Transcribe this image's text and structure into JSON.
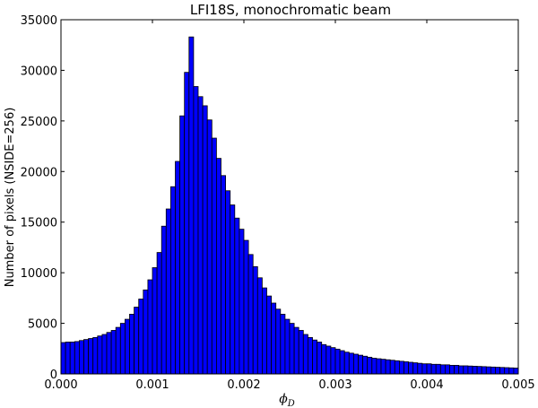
{
  "chart_data": {
    "type": "bar",
    "title": "LFI18S, monochromatic beam",
    "xlabel": "ϕ",
    "xlabel_subscript": "D",
    "ylabel": "Number of pixels (NSIDE=256)",
    "xlim": [
      0.0,
      0.005
    ],
    "ylim": [
      0,
      35000
    ],
    "xticks": [
      0.0,
      0.001,
      0.002,
      0.003,
      0.004,
      0.005
    ],
    "xtick_labels": [
      "0.000",
      "0.001",
      "0.002",
      "0.003",
      "0.004",
      "0.005"
    ],
    "yticks": [
      0,
      5000,
      10000,
      15000,
      20000,
      25000,
      30000,
      35000
    ],
    "ytick_labels": [
      "0",
      "5000",
      "10000",
      "15000",
      "20000",
      "25000",
      "30000",
      "35000"
    ],
    "bin_width": 5e-05,
    "bin_start": 0.0,
    "values": [
      3100,
      3150,
      3150,
      3200,
      3300,
      3400,
      3500,
      3600,
      3750,
      3900,
      4100,
      4300,
      4600,
      5000,
      5400,
      5900,
      6600,
      7400,
      8300,
      9300,
      10500,
      12000,
      14600,
      16300,
      18500,
      21000,
      25500,
      29800,
      33300,
      28400,
      27400,
      26500,
      25100,
      23300,
      21300,
      19600,
      18100,
      16700,
      15400,
      14300,
      13200,
      11800,
      10600,
      9500,
      8500,
      7700,
      7000,
      6400,
      5900,
      5400,
      5000,
      4600,
      4300,
      3900,
      3600,
      3350,
      3150,
      2900,
      2750,
      2600,
      2450,
      2300,
      2150,
      2050,
      1950,
      1850,
      1750,
      1650,
      1550,
      1500,
      1450,
      1400,
      1350,
      1300,
      1250,
      1200,
      1150,
      1100,
      1050,
      1000,
      1000,
      950,
      950,
      900,
      900,
      850,
      850,
      800,
      800,
      780,
      760,
      740,
      720,
      700,
      680,
      660,
      640,
      620,
      600,
      580
    ],
    "bar_color": "#0000ff",
    "edge_color": "#000000",
    "grid": false,
    "legend": "none"
  }
}
